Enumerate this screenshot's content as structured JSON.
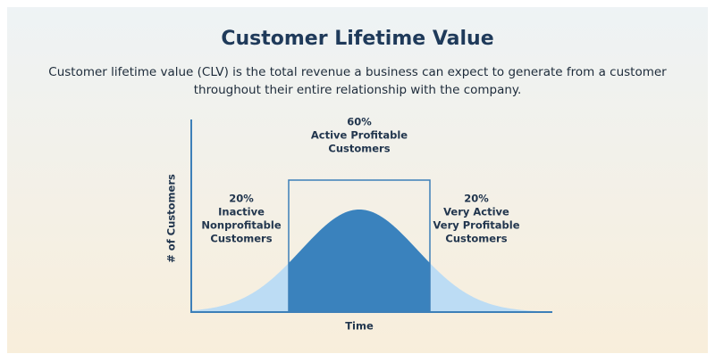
{
  "header": {
    "title": "Customer Lifetime Value",
    "description": [
      "Customer lifetime value (CLV) is the total revenue a business can expect to generate from a customer",
      "throughout their entire relationship with the company."
    ]
  },
  "diagram": {
    "y_axis_label": "# of Customers",
    "x_axis_label": "Time",
    "segments": [
      {
        "percent": "20%",
        "lines": [
          "Inactive",
          "Nonprofitable",
          "Customers"
        ]
      },
      {
        "percent": "60%",
        "lines": [
          "Active Profitable",
          "Customers"
        ]
      },
      {
        "percent": "20%",
        "lines": [
          "Very Active",
          "Very Profitable",
          "Customers"
        ]
      }
    ]
  }
}
